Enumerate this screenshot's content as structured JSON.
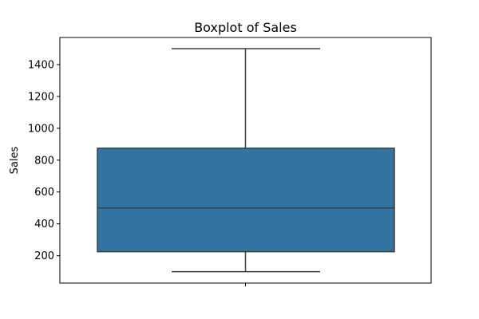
{
  "chart_data": {
    "type": "boxplot",
    "title": "Boxplot of Sales",
    "xlabel": "",
    "ylabel": "Sales",
    "ylim": [
      28,
      1570
    ],
    "yticks": [
      200,
      400,
      600,
      800,
      1000,
      1200,
      1400
    ],
    "yticklabels": [
      "200",
      "400",
      "600",
      "800",
      "1000",
      "1200",
      "1400"
    ],
    "grid": false,
    "box": {
      "whisker_low": 100,
      "q1": 225,
      "median": 500,
      "q3": 875,
      "whisker_high": 1500
    },
    "colors": {
      "box_fill": "#3274a1",
      "line": "#3f3f3f",
      "axes": "#000000"
    }
  }
}
